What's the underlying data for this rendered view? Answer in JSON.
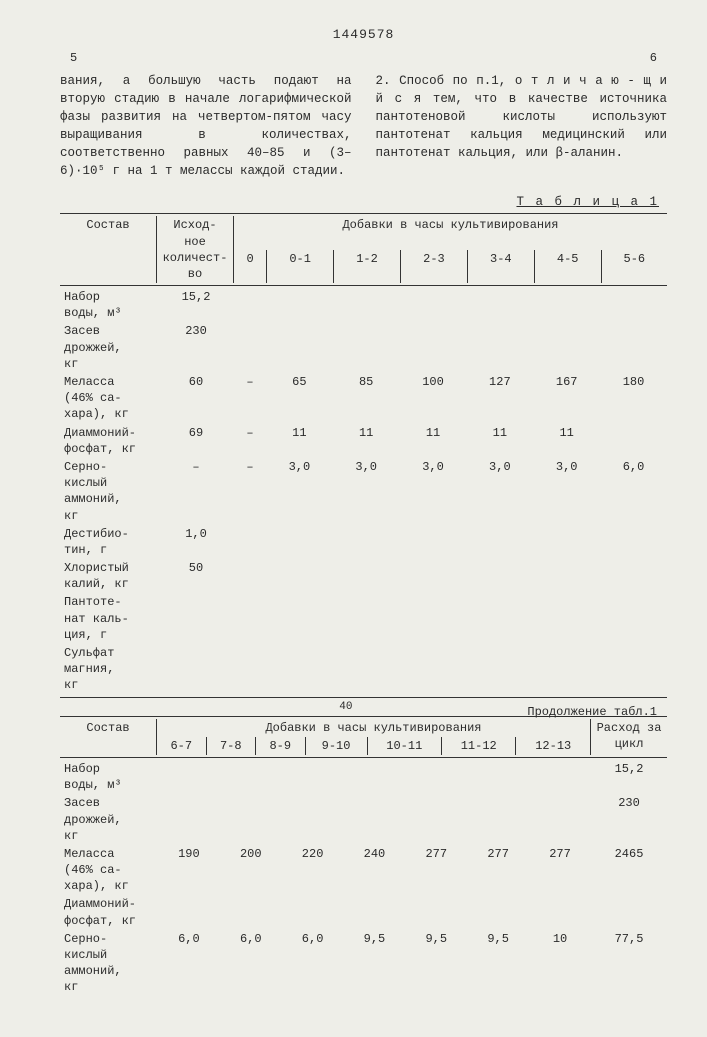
{
  "docNumber": "1449578",
  "leftColNum": "5",
  "rightColNum": "6",
  "colLeftText": "вания, а большую часть подают на вторую стадию в начале логарифмической фазы развития на четвертом-пятом часу выращивания в количествах, соответственно равных 40–85 и (3–6)·10⁵ г на 1 т мелассы каждой стадии.",
  "colRightText": "2. Способ по п.1, о т л и ч а ю - щ и й с я тем, что в качестве источника пантотеновой кислоты используют пантотенат кальция медицинский или пантотенат кальция, или β-аланин.",
  "table1": {
    "title": "Т а б л и ц а  1",
    "cont": "Продолжение табл.1",
    "headComp": "Состав",
    "headQty": "Исход-\nное\nколичест-\nво",
    "headAdd": "Добавки   в   часы   культивирования",
    "headAdd2": "Добавки   в   часы   культивирования",
    "headFlow": "Расход за\nцикл",
    "hours1": [
      "0",
      "0-1",
      "1-2",
      "2-3",
      "3-4",
      "4-5",
      "5-6"
    ],
    "hours2": [
      "6-7",
      "7-8",
      "8-9",
      "9-10",
      "10-11",
      "11-12",
      "12-13"
    ],
    "rows1": [
      {
        "label": "Набор\nводы, м³",
        "qty": "15,2",
        "vals": [
          "",
          "",
          "",
          "",
          "",
          "",
          ""
        ]
      },
      {
        "label": "Засев\nдрожжей,\nкг",
        "qty": "230",
        "vals": [
          "",
          "",
          "",
          "",
          "",
          "",
          ""
        ]
      },
      {
        "label": "Меласса\n(46% са-\nхара), кг",
        "qty": "60",
        "vals": [
          "–",
          "65",
          "85",
          "100",
          "127",
          "167",
          "180"
        ]
      },
      {
        "label": "Диаммоний-\nфосфат, кг",
        "qty": "69",
        "vals": [
          "–",
          "11",
          "11",
          "11",
          "11",
          "11",
          ""
        ]
      },
      {
        "label": "Серно-\nкислый\nаммоний,\nкг",
        "qty": "–",
        "vals": [
          "–",
          "3,0",
          "3,0",
          "3,0",
          "3,0",
          "3,0",
          "6,0"
        ]
      },
      {
        "label": "Дестибио-\nтин, г",
        "qty": "1,0",
        "vals": [
          "",
          "",
          "",
          "",
          "",
          "",
          ""
        ]
      },
      {
        "label": "Хлористый\nкалий, кг",
        "qty": "50",
        "vals": [
          "",
          "",
          "",
          "",
          "",
          "",
          ""
        ]
      },
      {
        "label": "Пантоте-\nнат каль-\nция, г",
        "qty": "",
        "vals": [
          "",
          "",
          "",
          "",
          "",
          "",
          ""
        ]
      },
      {
        "label": "Сульфат\nмагния,\nкг",
        "qty": "",
        "vals": [
          "",
          "",
          "",
          "",
          "",
          "",
          ""
        ]
      }
    ],
    "midMark": "40",
    "rows2": [
      {
        "label": "Набор\nводы, м³",
        "vals": [
          "",
          "",
          "",
          "",
          "",
          "",
          ""
        ],
        "flow": "15,2"
      },
      {
        "label": "Засев\nдрожжей,\nкг",
        "vals": [
          "",
          "",
          "",
          "",
          "",
          "",
          ""
        ],
        "flow": "230"
      },
      {
        "label": "Меласса\n(46% са-\nхара), кг",
        "vals": [
          "190",
          "200",
          "220",
          "240",
          "277",
          "277",
          "277"
        ],
        "flow": "2465"
      },
      {
        "label": "Диаммоний-\nфосфат, кг",
        "vals": [
          "",
          "",
          "",
          "",
          "",
          "",
          ""
        ],
        "flow": ""
      },
      {
        "label": "Серно-\nкислый\nаммоний,\nкг",
        "vals": [
          "6,0",
          "6,0",
          "6,0",
          "9,5",
          "9,5",
          "9,5",
          "10"
        ],
        "flow": "77,5"
      }
    ]
  }
}
